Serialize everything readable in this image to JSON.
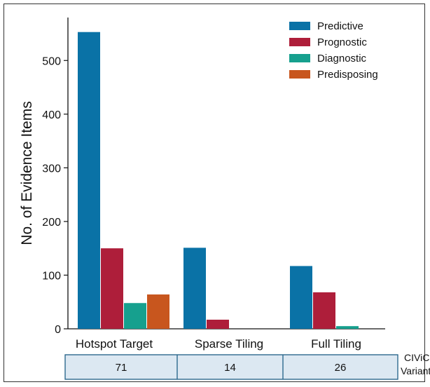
{
  "chart_data": {
    "type": "bar",
    "categories": [
      "Hotspot Target",
      "Sparse Tiling",
      "Full Tiling"
    ],
    "series": [
      {
        "name": "Predictive",
        "color": "#0A72A6",
        "values": [
          553,
          151,
          117
        ]
      },
      {
        "name": "Prognostic",
        "color": "#AE1E3A",
        "values": [
          150,
          17,
          68
        ]
      },
      {
        "name": "Diagnostic",
        "color": "#16A08E",
        "values": [
          48,
          0,
          5
        ]
      },
      {
        "name": "Predisposing",
        "color": "#C8561E",
        "values": [
          64,
          0,
          0
        ]
      }
    ],
    "ylabel": "No. of Evidence Items",
    "ylim": [
      0,
      590
    ],
    "yticks": [
      0,
      100,
      200,
      300,
      400,
      500
    ],
    "legend_position": "top-right",
    "grid": false
  },
  "variants_table": {
    "label_line1": "CIViC",
    "label_line2": "Variants",
    "values": [
      "71",
      "14",
      "26"
    ]
  }
}
